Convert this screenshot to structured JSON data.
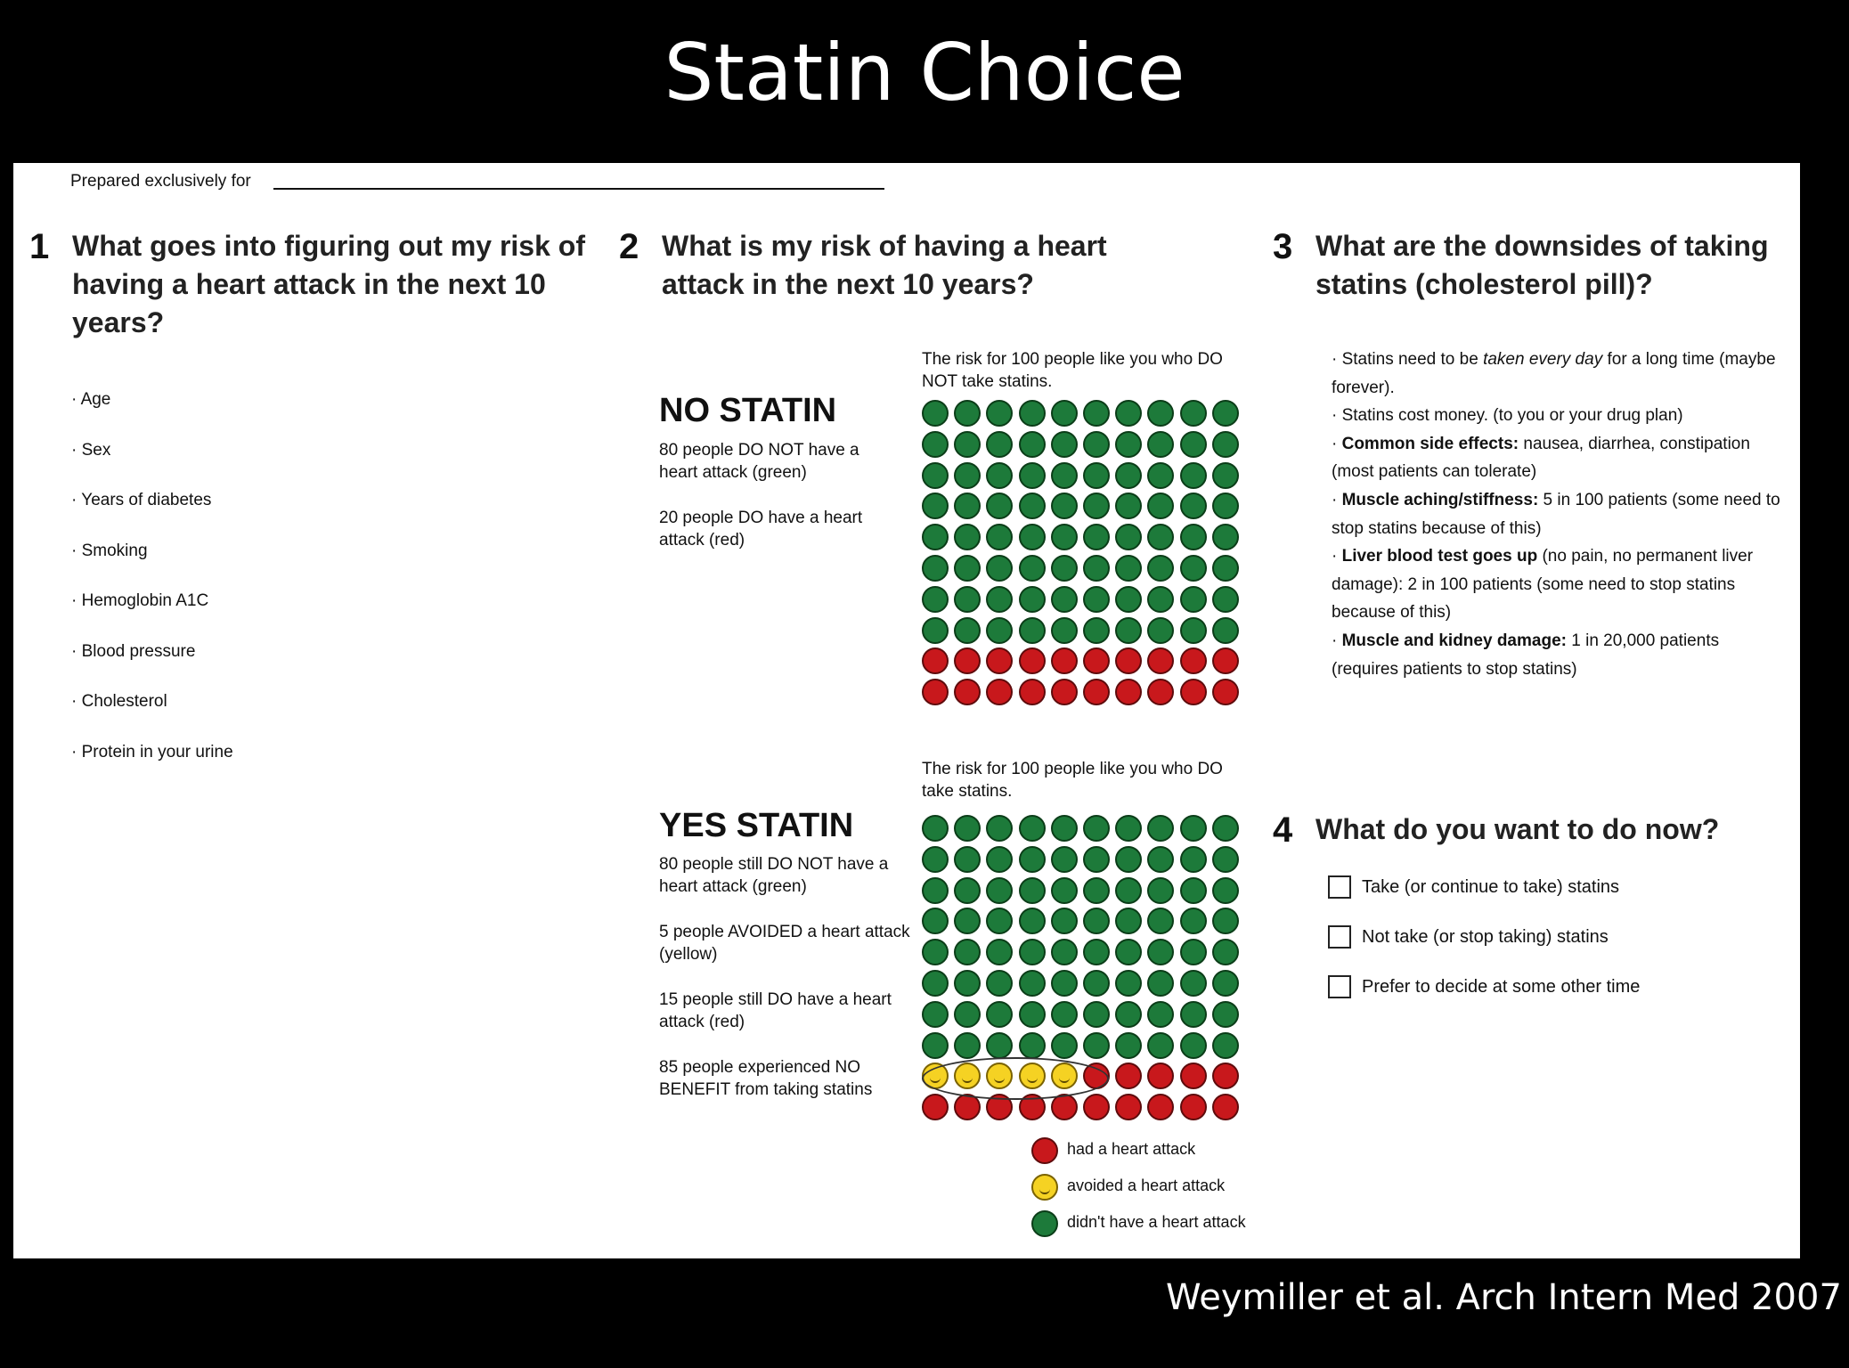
{
  "slide": {
    "title": "Statin Choice",
    "citation": "Weymiller et al.  Arch Intern Med 2007"
  },
  "header": {
    "prepared_for_label": "Prepared exclusively for",
    "prepared_for_value": ""
  },
  "section1": {
    "number": "1",
    "question": "What goes into figuring out my risk of having a heart attack in the next 10 years?",
    "factors": [
      "Age",
      "Sex",
      "Years of diabetes",
      "Smoking",
      "Hemoglobin A1C",
      "Blood pressure",
      "Cholesterol",
      "Protein in your urine"
    ]
  },
  "section2": {
    "number": "2",
    "question": "What is my risk of having a heart attack in the next 10 years?",
    "no_statin": {
      "caption": "The risk for 100 people like you who DO NOT take statins.",
      "label": "NO STATIN",
      "desc": [
        "80 people DO NOT have a heart attack (green)",
        "20 people DO have a heart attack (red)"
      ],
      "counts": {
        "green": 80,
        "yellow": 0,
        "red": 20
      }
    },
    "yes_statin": {
      "caption": "The risk for 100 people like you who DO take statins.",
      "label": "YES STATIN",
      "desc": [
        "80 people still DO NOT have a heart attack (green)",
        "5 people AVOIDED a heart attack (yellow)",
        "15 people still DO have a heart attack (red)",
        "85 people experienced NO BENEFIT from taking statins"
      ],
      "counts": {
        "green": 80,
        "yellow": 5,
        "red": 15
      }
    },
    "legend": [
      {
        "color": "red",
        "label": "had a heart attack"
      },
      {
        "color": "yellow",
        "label": "avoided a heart attack"
      },
      {
        "color": "green",
        "label": "didn't have a heart attack"
      }
    ],
    "colors": {
      "green": "#1d7a3a",
      "red": "#c8181c",
      "yellow": "#f5d223"
    }
  },
  "section3": {
    "number": "3",
    "question": "What are the downsides of taking statins (cholesterol pill)?",
    "items": [
      {
        "bold": "",
        "text": "Statins need to be taken every day for a long time (maybe forever)."
      },
      {
        "bold": "",
        "text": "Statins cost money. (to you or your drug plan)"
      },
      {
        "bold": "Common side effects:",
        "text": " nausea, diarrhea, constipation (most patients can tolerate)"
      },
      {
        "bold": "Muscle aching/stiffness:",
        "text": " 5 in 100 patients (some need to stop statins because of this)"
      },
      {
        "bold": "Liver blood test goes up",
        "text": " (no pain, no permanent liver damage): 2 in 100 patients (some need to stop statins because of this)"
      },
      {
        "bold": "Muscle and kidney damage:",
        "text": " 1 in 20,000 patients (requires patients to stop statins)"
      }
    ]
  },
  "section4": {
    "number": "4",
    "question": "What do you want to do now?",
    "options": [
      "Take (or continue to take) statins",
      "Not take (or stop taking) statins",
      "Prefer to decide at some other time"
    ]
  }
}
